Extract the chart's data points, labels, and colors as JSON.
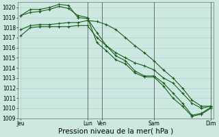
{
  "background_color": "#cce8e0",
  "grid_color": "#aacccc",
  "line_color": "#1a5c1a",
  "marker": "+",
  "markersize": 3,
  "linewidth": 0.8,
  "markeredgewidth": 0.8,
  "ylim": [
    1009,
    1020.5
  ],
  "yticks": [
    1009,
    1010,
    1011,
    1012,
    1013,
    1014,
    1015,
    1016,
    1017,
    1018,
    1019,
    1020
  ],
  "xlabel": "Pression niveau de la mer( hPa )",
  "xlabel_fontsize": 7.5,
  "tick_fontsize": 5.5,
  "xtick_labels": [
    "Jeu",
    "Lun",
    "Ven",
    "Sam",
    "Dim"
  ],
  "xtick_positions": [
    0,
    7,
    8.5,
    14,
    20
  ],
  "vlines": [
    7.0,
    8.5,
    14.0,
    20.0
  ],
  "vline_color": "#444444",
  "vline_lw": 0.5,
  "series": [
    {
      "x": [
        0,
        1,
        2,
        3,
        4,
        5,
        6,
        7,
        8,
        9,
        10,
        11,
        12,
        13,
        14,
        15,
        16,
        17,
        18,
        19,
        20
      ],
      "y": [
        1017.2,
        1018.0,
        1018.1,
        1018.1,
        1018.1,
        1018.1,
        1018.2,
        1018.2,
        1017.0,
        1016.2,
        1015.5,
        1015.0,
        1014.5,
        1014.2,
        1013.8,
        1013.0,
        1012.5,
        1011.5,
        1010.5,
        1010.0,
        1010.2
      ]
    },
    {
      "x": [
        0,
        1,
        2,
        3,
        4,
        5,
        6,
        7,
        8,
        9,
        10,
        11,
        12,
        13,
        14,
        15,
        16,
        17,
        18,
        19,
        20
      ],
      "y": [
        1019.2,
        1019.8,
        1019.8,
        1020.0,
        1020.3,
        1020.2,
        1019.0,
        1018.9,
        1017.5,
        1016.2,
        1015.2,
        1014.7,
        1013.7,
        1013.2,
        1013.2,
        1012.5,
        1011.5,
        1010.5,
        1009.3,
        1009.5,
        1010.1
      ]
    },
    {
      "x": [
        0,
        1,
        2,
        3,
        4,
        5,
        6,
        7,
        8,
        9,
        10,
        11,
        12,
        13,
        14,
        15,
        16,
        17,
        18,
        19,
        20
      ],
      "y": [
        1019.2,
        1019.5,
        1019.6,
        1019.8,
        1020.1,
        1019.9,
        1019.2,
        1019.0,
        1016.5,
        1015.7,
        1014.8,
        1014.4,
        1013.5,
        1013.1,
        1013.1,
        1012.2,
        1011.0,
        1010.2,
        1009.2,
        1009.4,
        1010.0
      ]
    },
    {
      "x": [
        0,
        1,
        2,
        3,
        4,
        5,
        6,
        7,
        8,
        9,
        10,
        11,
        12,
        13,
        14,
        15,
        16,
        17,
        18,
        19,
        20
      ],
      "y": [
        1017.8,
        1018.2,
        1018.3,
        1018.3,
        1018.4,
        1018.5,
        1018.5,
        1018.7,
        1018.6,
        1018.3,
        1017.8,
        1017.0,
        1016.2,
        1015.5,
        1014.7,
        1013.8,
        1013.0,
        1012.0,
        1010.8,
        1010.2,
        1010.2
      ]
    }
  ]
}
